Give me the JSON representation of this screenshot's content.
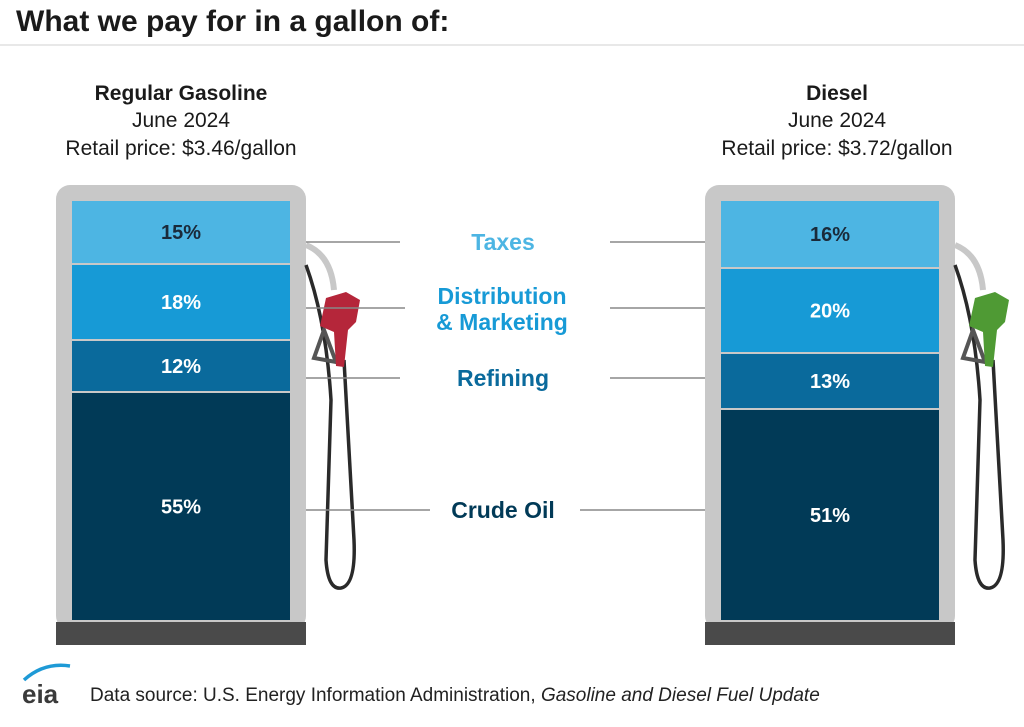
{
  "title": "What we pay for in a gallon of:",
  "colors": {
    "taxes": "#4db5e3",
    "distribution": "#179ad6",
    "refining": "#0a6a9c",
    "crude": "#013a57",
    "pump_frame": "#c8c8c8",
    "pump_base": "#4a4a4a",
    "gasoline_nozzle": "#b5263a",
    "diesel_nozzle": "#4f9a34"
  },
  "chart_data": {
    "type": "bar",
    "stacked": true,
    "categories_labels": [
      "Taxes",
      "Distribution & Marketing",
      "Refining",
      "Crude Oil"
    ],
    "categories": [
      {
        "line1": "Taxes",
        "line2": ""
      },
      {
        "line1": "Distribution",
        "line2": "& Marketing"
      },
      {
        "line1": "Refining",
        "line2": ""
      },
      {
        "line1": "Crude Oil",
        "line2": ""
      }
    ],
    "series": [
      {
        "name": "Regular Gasoline",
        "period": "June 2024",
        "price": "Retail price: $3.46/gallon",
        "values": [
          15,
          18,
          12,
          55
        ],
        "labels": [
          "15%",
          "18%",
          "12%",
          "55%"
        ]
      },
      {
        "name": "Diesel",
        "period": "June 2024",
        "price": "Retail price: $3.72/gallon",
        "values": [
          16,
          20,
          13,
          51
        ],
        "labels": [
          "16%",
          "20%",
          "13%",
          "51%"
        ]
      }
    ],
    "unit": "%"
  },
  "footer": {
    "logo": "eia",
    "source_prefix": "Data source: U.S. Energy Information Administration, ",
    "source_title": "Gasoline and Diesel Fuel Update"
  }
}
